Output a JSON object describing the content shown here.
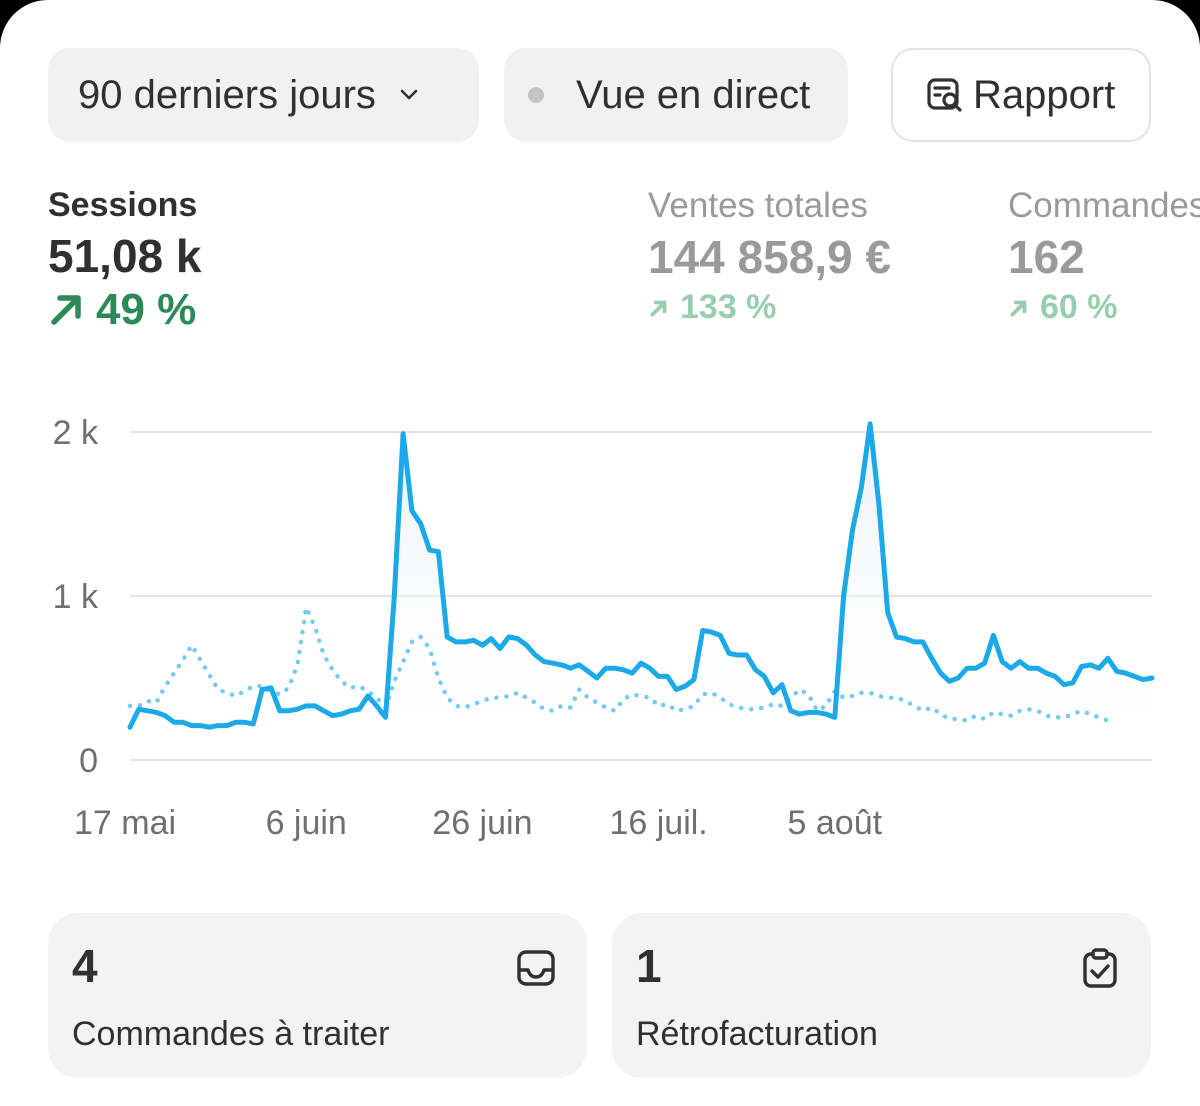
{
  "toolbar": {
    "range_label": "90 derniers jours",
    "live_label": "Vue en direct",
    "report_label": "Rapport"
  },
  "metrics": {
    "sessions": {
      "label": "Sessions",
      "value": "51,08 k",
      "change": "49 %"
    },
    "sales": {
      "label": "Ventes totales",
      "value": "144 858,9 €",
      "change": "133 %"
    },
    "orders": {
      "label": "Commandes",
      "value": "162",
      "change": "60 %"
    }
  },
  "tiles": {
    "orders_to_process": {
      "count": "4",
      "label": "Commandes à traiter",
      "icon": "inbox-icon"
    },
    "chargebacks": {
      "count": "1",
      "label": "Rétrofacturation",
      "icon": "clipboard-check-icon"
    }
  },
  "colors": {
    "line": "#1ba9e8",
    "positive": "#2b8a57",
    "positive_muted": "#98cdb0",
    "muted_text": "#9a9a9a"
  },
  "chart_data": {
    "type": "line",
    "y_ticks": [
      "2 k",
      "1 k",
      "0"
    ],
    "x_ticks": [
      "17 mai",
      "6 juin",
      "26 juin",
      "16 juil.",
      "5 août"
    ],
    "ylim": [
      0,
      2000
    ],
    "x_start": "2024-05-17",
    "grid": true,
    "legend": "none",
    "series": [
      {
        "style": "solid",
        "values": [
          200,
          310,
          300,
          290,
          270,
          230,
          230,
          210,
          210,
          200,
          210,
          210,
          230,
          230,
          220,
          430,
          440,
          300,
          300,
          310,
          330,
          330,
          300,
          270,
          280,
          300,
          310,
          390,
          330,
          260,
          1000,
          1990,
          1520,
          1440,
          1280,
          1270,
          750,
          720,
          720,
          730,
          700,
          740,
          680,
          750,
          740,
          700,
          640,
          600,
          590,
          580,
          560,
          580,
          540,
          500,
          560,
          560,
          550,
          530,
          590,
          560,
          510,
          510,
          430,
          450,
          490,
          790,
          780,
          760,
          650,
          640,
          640,
          550,
          510,
          410,
          460,
          300,
          280,
          290,
          290,
          280,
          260,
          1000,
          1400,
          1660,
          2050,
          1560,
          900,
          750,
          740,
          720,
          720,
          620,
          530,
          480,
          500,
          560,
          560,
          590,
          760,
          600,
          560,
          600,
          560,
          560,
          530,
          510,
          460,
          470,
          570,
          580,
          560,
          620,
          540,
          530,
          510,
          490,
          500
        ]
      },
      {
        "style": "dotted",
        "values": [
          330,
          330,
          360,
          350,
          450,
          530,
          610,
          700,
          610,
          520,
          430,
          410,
          390,
          420,
          450,
          450,
          420,
          400,
          440,
          580,
          930,
          810,
          640,
          550,
          480,
          440,
          450,
          420,
          380,
          320,
          480,
          600,
          720,
          750,
          680,
          500,
          380,
          330,
          320,
          340,
          360,
          380,
          380,
          390,
          410,
          380,
          350,
          310,
          300,
          330,
          320,
          430,
          380,
          350,
          320,
          300,
          370,
          400,
          390,
          380,
          330,
          340,
          300,
          310,
          330,
          400,
          410,
          380,
          340,
          320,
          310,
          310,
          320,
          340,
          330,
          380,
          430,
          400,
          300,
          330,
          420,
          380,
          390,
          410,
          410,
          390,
          380,
          380,
          360,
          330,
          300,
          320,
          280,
          250,
          250,
          240,
          270,
          250,
          290,
          280,
          270,
          300,
          310,
          300,
          270,
          260,
          260,
          280,
          300,
          280,
          260,
          240
        ]
      }
    ]
  }
}
